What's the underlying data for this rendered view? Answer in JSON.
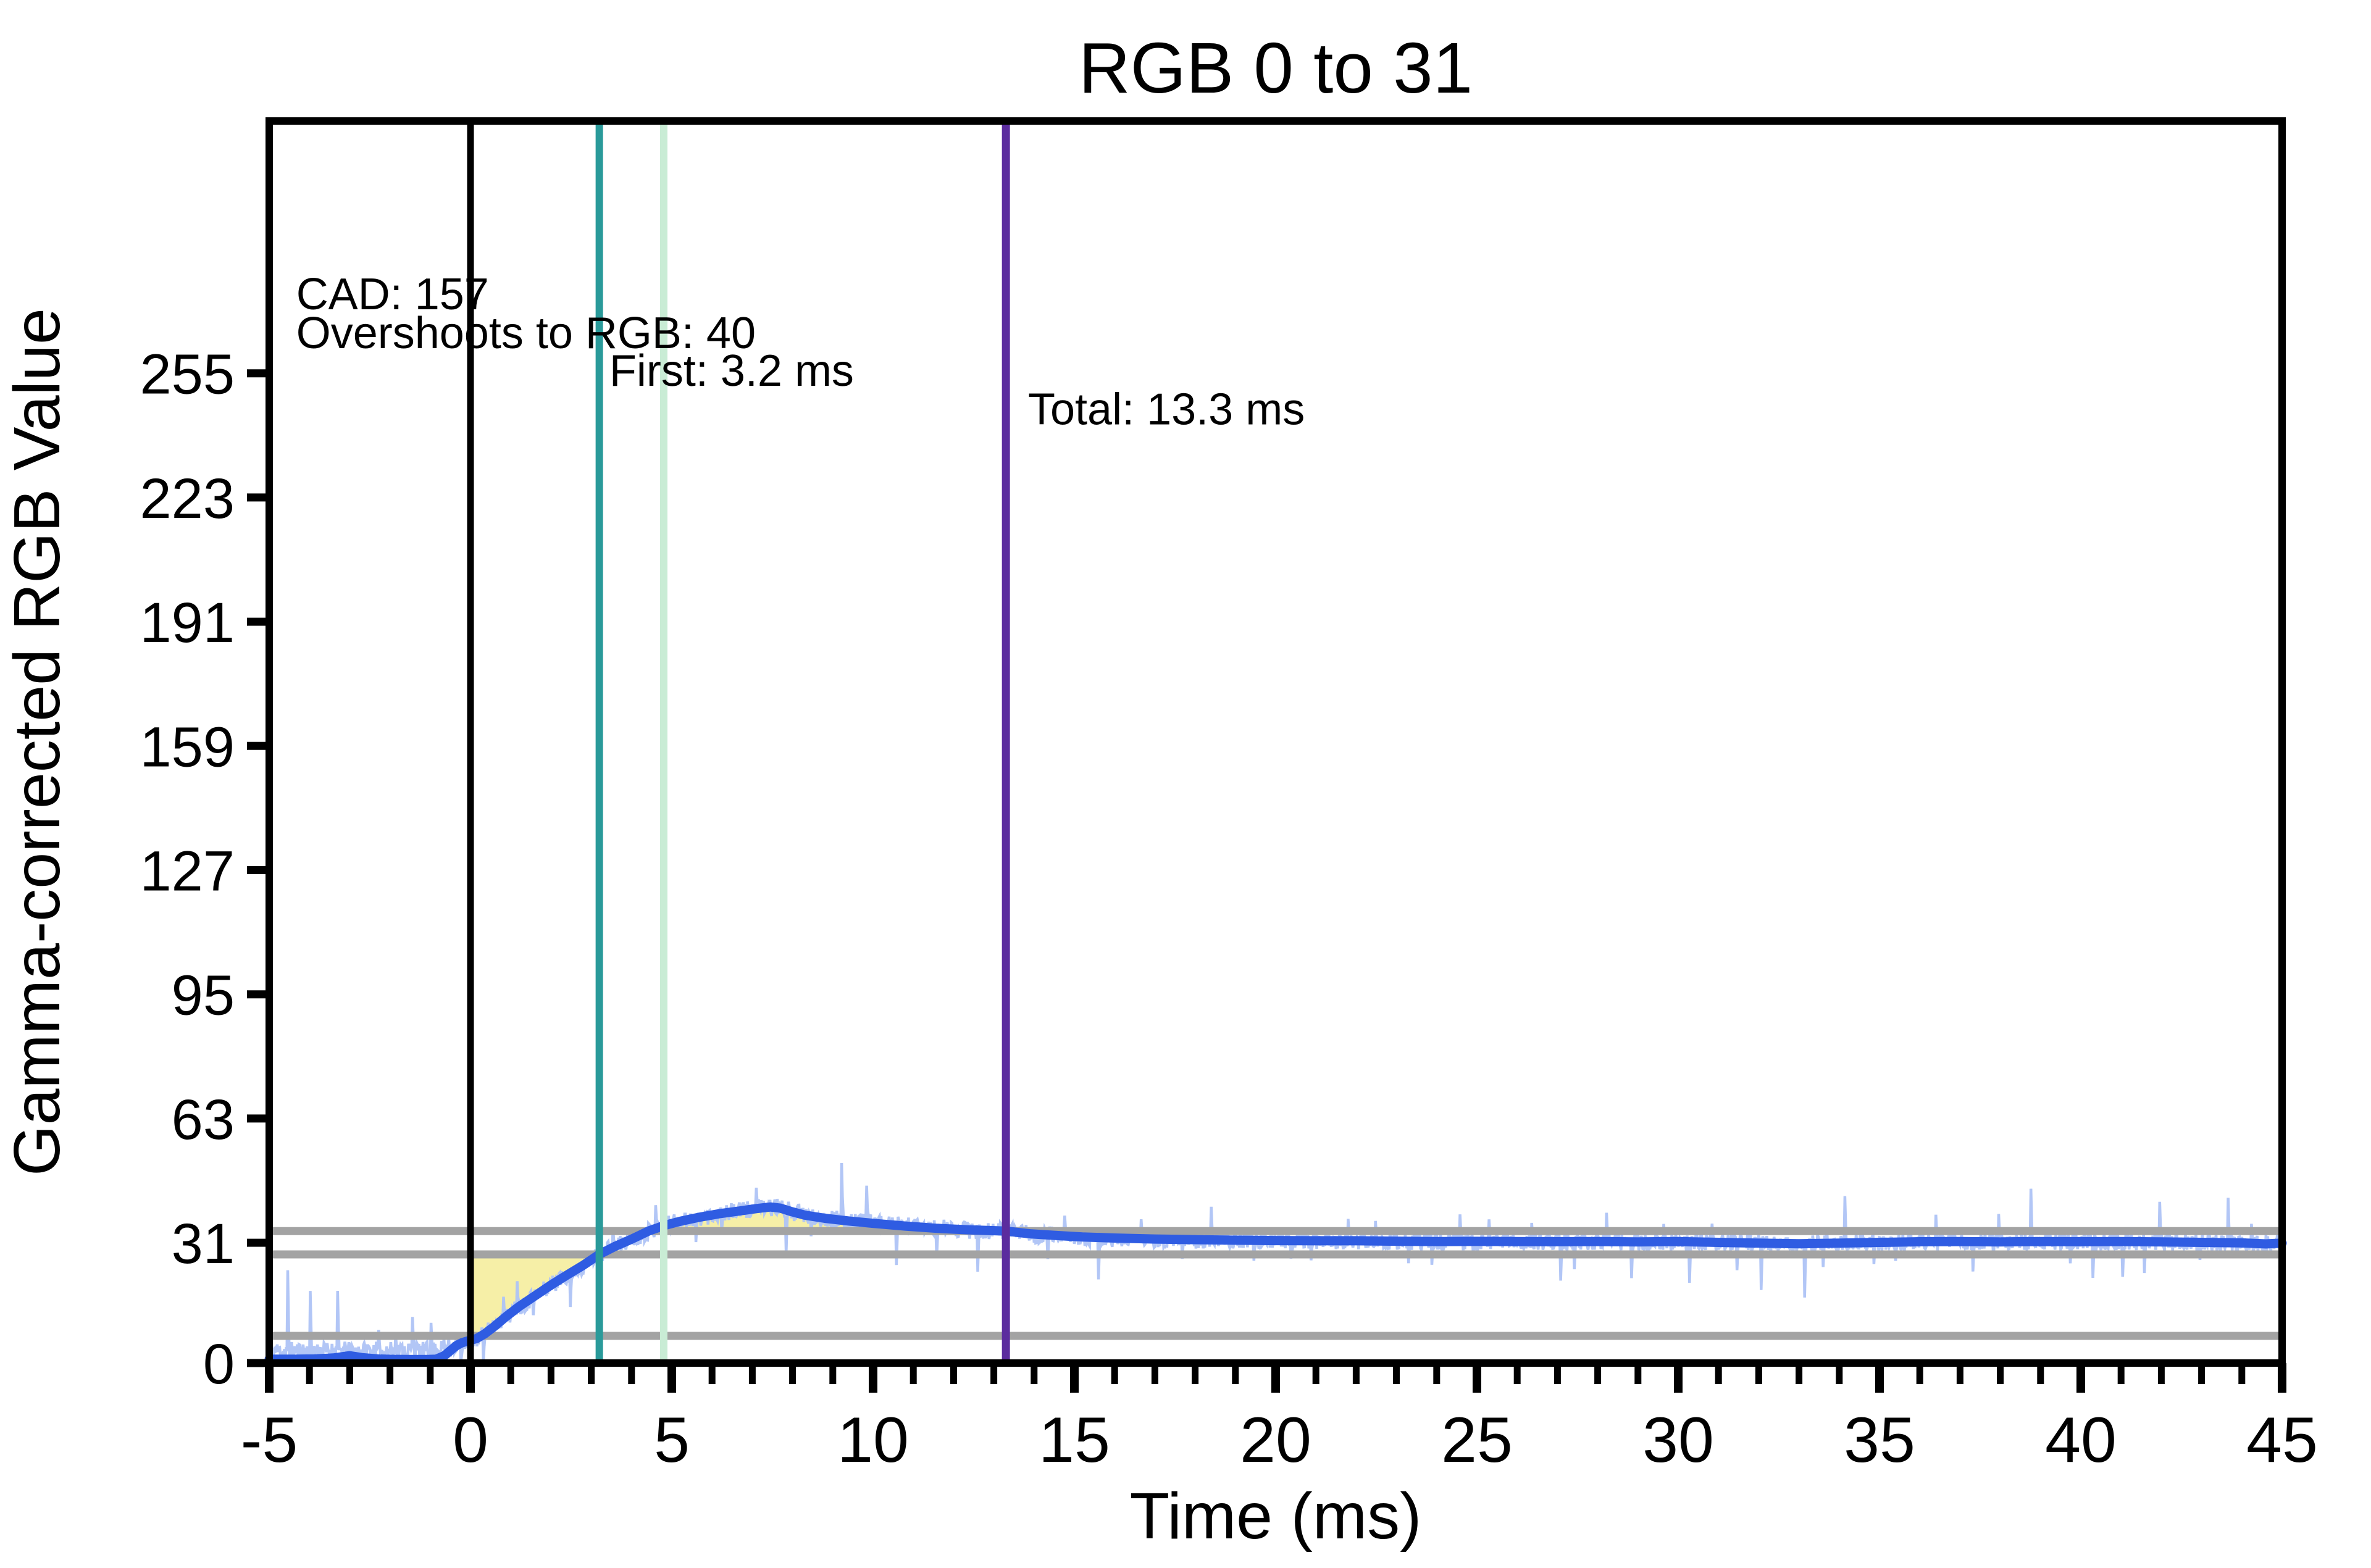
{
  "chart_data": {
    "type": "line",
    "title": "RGB 0 to 31",
    "xlabel": "Time (ms)",
    "ylabel": "Gamma-corrected RGB Value",
    "xlim": [
      -5,
      45
    ],
    "ylim": [
      0,
      320
    ],
    "x_major_ticks": [
      -5,
      0,
      5,
      10,
      15,
      20,
      25,
      30,
      35,
      40,
      45
    ],
    "x_minor_tick_step_ms": 1,
    "y_ticks": [
      0,
      31,
      63,
      95,
      127,
      159,
      191,
      223,
      255
    ],
    "grid": false,
    "legend": "none",
    "transition": {
      "start_rgb": 0,
      "end_rgb": 31
    },
    "metrics": {
      "cad": 157,
      "overshoot_rgb": 40,
      "first_ms": 3.2,
      "total_ms": 13.3
    },
    "annotations": [
      {
        "text": "CAD: 157",
        "x_ms": -4.33,
        "y_value": 271.5
      },
      {
        "text": "Overshoots to RGB: 40",
        "x_ms": -4.33,
        "y_value": 261.5
      },
      {
        "text": "First: 3.2 ms",
        "x_ms": 3.45,
        "y_value": 251.8
      },
      {
        "text": "Total: 13.3 ms",
        "x_ms": 13.85,
        "y_value": 241.8
      }
    ],
    "vlines": [
      {
        "name": "stimulus-start-line",
        "x_ms": 0,
        "color": "#000000",
        "width": 11
      },
      {
        "name": "first-response-line",
        "x_ms": 3.2,
        "color": "#2a9a9a",
        "width": 12
      },
      {
        "name": "initial-transition-end-line",
        "x_ms": 4.8,
        "color": "#c9ecd5",
        "width": 12
      },
      {
        "name": "total-response-line",
        "x_ms": 13.3,
        "color": "#5b2c9e",
        "width": 13
      }
    ],
    "hlines": [
      {
        "name": "tolerance-upper-line",
        "y": 34
      },
      {
        "name": "tolerance-lower-line",
        "y": 28
      },
      {
        "name": "start-tolerance-line",
        "y": 7
      }
    ],
    "hline_color": "#a3a3a3",
    "tolerance_band": [
      28,
      34
    ],
    "error_area": {
      "color": "#f5ee9f",
      "opacity": 0.92,
      "undershoot_from_ms": 0,
      "undershoot_until_ms": 3.2,
      "undershoot_bound": 28,
      "overshoot_from_ms": 4.42,
      "overshoot_until_ms": 13.3,
      "overshoot_bound": 34
    },
    "series": {
      "response_curve": {
        "name": "smoothed-response",
        "color": "#2f5ce2",
        "width": 15,
        "points": [
          [
            -5,
            1.0
          ],
          [
            -4.4,
            1.0
          ],
          [
            -3.9,
            1.05
          ],
          [
            -3.4,
            1.3
          ],
          [
            -3.0,
            1.9
          ],
          [
            -2.7,
            1.4
          ],
          [
            -2.3,
            1.05
          ],
          [
            -1.9,
            0.95
          ],
          [
            -1.5,
            0.9
          ],
          [
            -1.1,
            0.9
          ],
          [
            -0.85,
            1.0
          ],
          [
            -0.65,
            1.9
          ],
          [
            -0.5,
            3.2
          ],
          [
            -0.35,
            4.5
          ],
          [
            -0.22,
            5.2
          ],
          [
            -0.1,
            5.6
          ],
          [
            0,
            5.9
          ],
          [
            0.15,
            6.3
          ],
          [
            0.35,
            7.5
          ],
          [
            0.6,
            9.5
          ],
          [
            0.9,
            12.1
          ],
          [
            1.2,
            14.5
          ],
          [
            1.6,
            17.3
          ],
          [
            2.0,
            20.1
          ],
          [
            2.4,
            22.7
          ],
          [
            2.8,
            25.2
          ],
          [
            3.2,
            28.0
          ],
          [
            3.6,
            30.1
          ],
          [
            4.0,
            31.9
          ],
          [
            4.42,
            34.0
          ],
          [
            4.8,
            35.4
          ],
          [
            5.2,
            36.5
          ],
          [
            5.7,
            37.6
          ],
          [
            6.2,
            38.5
          ],
          [
            6.7,
            39.2
          ],
          [
            7.1,
            39.8
          ],
          [
            7.45,
            40.2
          ],
          [
            7.7,
            39.9
          ],
          [
            7.95,
            39.1
          ],
          [
            8.3,
            38.1
          ],
          [
            8.8,
            37.3
          ],
          [
            9.4,
            36.6
          ],
          [
            10,
            36.0
          ],
          [
            10.8,
            35.3
          ],
          [
            11.6,
            34.7
          ],
          [
            12.4,
            34.3
          ],
          [
            13.3,
            34.0
          ],
          [
            13.9,
            33.3
          ],
          [
            14.5,
            32.9
          ],
          [
            15.2,
            32.5
          ],
          [
            16,
            32.2
          ],
          [
            17,
            31.95
          ],
          [
            18,
            31.8
          ],
          [
            19,
            31.65
          ],
          [
            20,
            31.55
          ],
          [
            21,
            31.5
          ],
          [
            22,
            31.5
          ],
          [
            23,
            31.4
          ],
          [
            24,
            31.3
          ],
          [
            25,
            31.35
          ],
          [
            26,
            31.3
          ],
          [
            27,
            31.25
          ],
          [
            28,
            31.3
          ],
          [
            29,
            31.2
          ],
          [
            30,
            31.3
          ],
          [
            31,
            31.1
          ],
          [
            32,
            30.9
          ],
          [
            33,
            30.75
          ],
          [
            34,
            30.9
          ],
          [
            35,
            31.1
          ],
          [
            36,
            31.25
          ],
          [
            37,
            31.3
          ],
          [
            38,
            31.2
          ],
          [
            39,
            31.3
          ],
          [
            40,
            31.25
          ],
          [
            41,
            31.3
          ],
          [
            42,
            31.2
          ],
          [
            43,
            31.1
          ],
          [
            44,
            30.95
          ],
          [
            44.6,
            30.7
          ],
          [
            45,
            30.9
          ]
        ]
      },
      "raw_trace": {
        "name": "raw-sensor-trace",
        "color": "#aec3f5",
        "width": 4.5,
        "seed": 11,
        "step_ms": 0.02,
        "baseline_mean": 3.2,
        "dense_amplitude": 2.3,
        "spike_min_gap_ms": 0.28,
        "spike_max_gap_ms": 1.1,
        "pre_spike_max": 27,
        "post_spike_max": 13
      }
    }
  }
}
